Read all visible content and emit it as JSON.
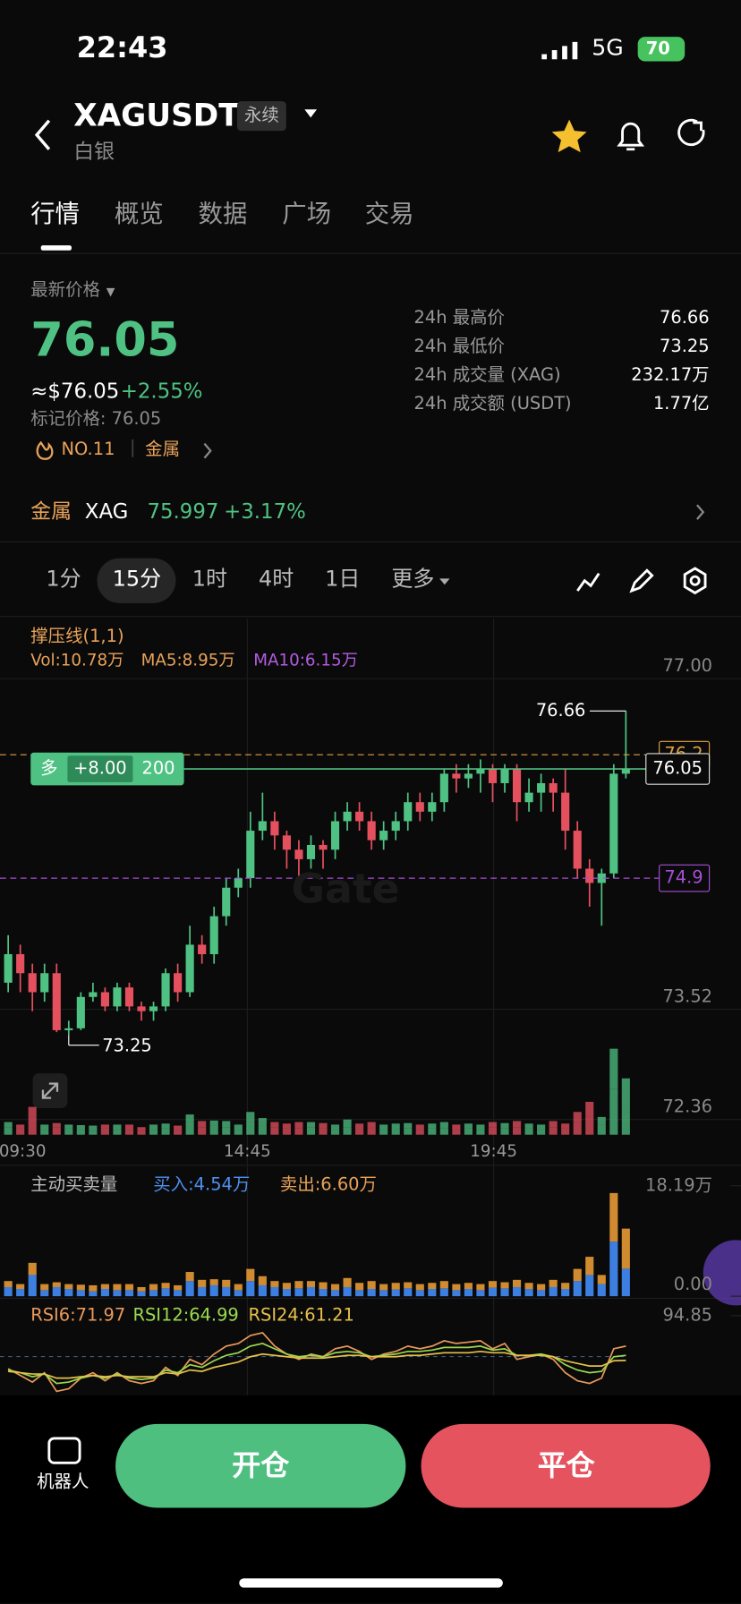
{
  "status_bar": {
    "time": "22:43",
    "network": "5G",
    "battery": "70"
  },
  "header": {
    "symbol": "XAGUSDT",
    "badge": "永续",
    "subtitle": "白银"
  },
  "tabs": [
    "行情",
    "概览",
    "数据",
    "广场",
    "交易"
  ],
  "price": {
    "label": "最新价格",
    "last": "76.05",
    "usd": "≈$76.05",
    "change": "+2.55%",
    "mark": "标记价格: 76.05",
    "rank": "NO.11",
    "sector": "金属"
  },
  "stats": [
    {
      "label": "24h 最高价",
      "value": "76.66"
    },
    {
      "label": "24h 最低价",
      "value": "73.25"
    },
    {
      "label": "24h 成交量 (XAG)",
      "value": "232.17万"
    },
    {
      "label": "24h 成交额 (USDT)",
      "value": "1.77亿"
    }
  ],
  "related": {
    "sector": "金属",
    "symbol": "XAG",
    "price": "75.997",
    "change": "+3.17%"
  },
  "intervals": [
    "1分",
    "15分",
    "1时",
    "4时",
    "1日",
    "更多"
  ],
  "chart": {
    "type": "candlestick",
    "indicator": "撑压线(1,1)",
    "vol": "Vol:10.78万",
    "ma5": "MA5:8.95万",
    "ma10": "MA10:6.15万",
    "watermark": "Gate",
    "ylim": [
      72.2,
      77.58
    ],
    "yticks": [
      {
        "value": 77,
        "label": "77.00"
      },
      73.52,
      72.36
    ],
    "x_labels": [
      "09:30",
      "14:45",
      "19:45"
    ],
    "high": 76.66,
    "low": 73.25,
    "levels": [
      {
        "value": 76.2,
        "color": "#e0a040"
      },
      {
        "value": 74.9,
        "color": "#a64fd6"
      }
    ],
    "position": {
      "side": "多",
      "pnl": "+8.00",
      "qty": "200",
      "price": 76.05
    },
    "up_color": "#4fc283",
    "down_color": "#e5505f",
    "candles": [
      [
        73.8,
        74.1,
        74.3,
        73.7
      ],
      [
        74.1,
        73.9,
        74.2,
        73.7
      ],
      [
        73.9,
        73.7,
        74.0,
        73.5
      ],
      [
        73.7,
        73.9,
        74.0,
        73.6
      ],
      [
        73.9,
        73.3,
        74.0,
        73.28
      ],
      [
        73.3,
        73.32,
        73.4,
        73.25
      ],
      [
        73.32,
        73.65,
        73.7,
        73.3
      ],
      [
        73.65,
        73.7,
        73.8,
        73.6
      ],
      [
        73.7,
        73.55,
        73.75,
        73.5
      ],
      [
        73.55,
        73.75,
        73.8,
        73.5
      ],
      [
        73.75,
        73.55,
        73.8,
        73.5
      ],
      [
        73.55,
        73.5,
        73.6,
        73.4
      ],
      [
        73.5,
        73.55,
        73.6,
        73.4
      ],
      [
        73.55,
        73.9,
        73.95,
        73.5
      ],
      [
        73.9,
        73.7,
        74.0,
        73.6
      ],
      [
        73.7,
        74.2,
        74.4,
        73.65
      ],
      [
        74.2,
        74.1,
        74.3,
        74.0
      ],
      [
        74.1,
        74.5,
        74.6,
        74.0
      ],
      [
        74.5,
        74.8,
        74.9,
        74.4
      ],
      [
        74.8,
        74.9,
        75.0,
        74.7
      ],
      [
        74.9,
        75.4,
        75.6,
        74.8
      ],
      [
        75.4,
        75.5,
        75.8,
        75.3
      ],
      [
        75.5,
        75.35,
        75.6,
        75.2
      ],
      [
        75.35,
        75.2,
        75.4,
        75.0
      ],
      [
        75.2,
        75.1,
        75.3,
        74.9
      ],
      [
        75.1,
        75.25,
        75.35,
        75.0
      ],
      [
        75.25,
        75.2,
        75.3,
        75.0
      ],
      [
        75.2,
        75.5,
        75.6,
        75.1
      ],
      [
        75.5,
        75.6,
        75.7,
        75.4
      ],
      [
        75.6,
        75.5,
        75.7,
        75.4
      ],
      [
        75.5,
        75.3,
        75.6,
        75.2
      ],
      [
        75.3,
        75.4,
        75.5,
        75.2
      ],
      [
        75.4,
        75.5,
        75.6,
        75.3
      ],
      [
        75.5,
        75.7,
        75.8,
        75.4
      ],
      [
        75.7,
        75.6,
        75.8,
        75.5
      ],
      [
        75.6,
        75.7,
        75.8,
        75.5
      ],
      [
        75.7,
        76.0,
        76.05,
        75.6
      ],
      [
        76.0,
        75.95,
        76.1,
        75.8
      ],
      [
        75.95,
        76.0,
        76.1,
        75.85
      ],
      [
        76.0,
        76.05,
        76.15,
        75.8
      ],
      [
        76.05,
        75.9,
        76.1,
        75.7
      ],
      [
        75.9,
        76.05,
        76.1,
        75.8
      ],
      [
        76.05,
        75.7,
        76.1,
        75.5
      ],
      [
        75.7,
        75.8,
        75.95,
        75.6
      ],
      [
        75.8,
        75.9,
        76.0,
        75.6
      ],
      [
        75.9,
        75.8,
        75.95,
        75.6
      ],
      [
        75.8,
        75.4,
        76.05,
        75.2
      ],
      [
        75.4,
        75.0,
        75.5,
        74.9
      ],
      [
        75.0,
        74.85,
        75.1,
        74.6
      ],
      [
        74.85,
        74.95,
        75.0,
        74.4
      ],
      [
        74.95,
        76.0,
        76.1,
        74.9
      ],
      [
        76.0,
        76.05,
        76.66,
        75.95
      ]
    ]
  },
  "flow": {
    "title": "主动买卖量",
    "buy_label": "买入:4.54万",
    "sell_label": "卖出:6.60万",
    "buy_color": "#3d7fe0",
    "sell_color": "#d08a30",
    "ylim": [
      0,
      18.19
    ],
    "yticks": [
      {
        "value": 18.19,
        "label": "18.19万"
      },
      {
        "value": 0,
        "label": "0.00"
      }
    ],
    "buy": [
      1.5,
      1.2,
      3.5,
      1.0,
      1.5,
      1.2,
      1.0,
      0.8,
      1.2,
      1.0,
      1.0,
      0.8,
      1.0,
      1.3,
      1.0,
      2.5,
      1.5,
      1.8,
      1.5,
      1.0,
      2.5,
      1.8,
      1.5,
      1.2,
      1.3,
      1.5,
      1.2,
      1.0,
      1.5,
      1.0,
      1.2,
      1.0,
      1.1,
      1.3,
      1.0,
      1.2,
      1.3,
      1.0,
      1.2,
      1.0,
      1.4,
      1.3,
      1.5,
      1.2,
      1.0,
      1.5,
      1.2,
      2.5,
      3.5,
      2.0,
      9.0,
      4.54
    ],
    "sell": [
      1.0,
      0.8,
      2.0,
      1.0,
      0.8,
      0.8,
      0.9,
      1.0,
      0.8,
      1.0,
      1.0,
      0.7,
      1.0,
      0.9,
      0.8,
      1.5,
      1.2,
      1.0,
      1.2,
      1.0,
      2.0,
      1.5,
      1.0,
      1.0,
      1.2,
      1.0,
      1.1,
      1.0,
      1.5,
      1.2,
      1.3,
      1.0,
      1.1,
      1.0,
      1.0,
      1.0,
      1.2,
      1.0,
      1.0,
      1.0,
      1.1,
      1.0,
      1.2,
      1.0,
      1.0,
      1.2,
      1.0,
      2.0,
      3.0,
      1.5,
      8.0,
      6.6
    ]
  },
  "rsi": {
    "ylim": [
      35,
      94.85
    ],
    "yticks": [
      94.85
    ],
    "series": [
      {
        "name": "RSI6:71.97",
        "color": "#e8985a",
        "values": [
          55,
          50,
          45,
          52,
          38,
          40,
          48,
          52,
          46,
          52,
          46,
          44,
          46,
          56,
          50,
          62,
          58,
          66,
          72,
          74,
          80,
          82,
          72,
          66,
          62,
          66,
          64,
          70,
          72,
          68,
          62,
          66,
          68,
          72,
          70,
          72,
          76,
          74,
          75,
          76,
          70,
          74,
          62,
          64,
          66,
          62,
          52,
          46,
          44,
          48,
          70,
          71.97
        ]
      },
      {
        "name": "RSI12:64.99",
        "color": "#9ad94f",
        "values": [
          54,
          52,
          49,
          51,
          44,
          45,
          48,
          50,
          48,
          51,
          48,
          47,
          48,
          54,
          52,
          58,
          56,
          61,
          65,
          67,
          72,
          74,
          70,
          66,
          64,
          65,
          64,
          67,
          68,
          67,
          64,
          65,
          66,
          68,
          68,
          69,
          71,
          71,
          71,
          72,
          69,
          70,
          65,
          65,
          66,
          64,
          58,
          54,
          52,
          53,
          64,
          64.99
        ]
      },
      {
        "name": "RSI24:61.21",
        "color": "#e6c04a",
        "values": [
          53,
          52,
          51,
          51,
          48,
          48,
          49,
          50,
          49,
          50,
          49,
          49,
          49,
          52,
          51,
          54,
          53,
          56,
          58,
          60,
          64,
          66,
          65,
          64,
          63,
          63,
          63,
          64,
          65,
          65,
          64,
          64,
          64,
          65,
          65,
          66,
          67,
          67,
          67,
          68,
          67,
          67,
          65,
          65,
          65,
          64,
          61,
          59,
          57,
          57,
          61,
          61.21
        ]
      }
    ]
  },
  "footer": {
    "robot": "机器人",
    "open": "开仓",
    "close": "平仓"
  }
}
